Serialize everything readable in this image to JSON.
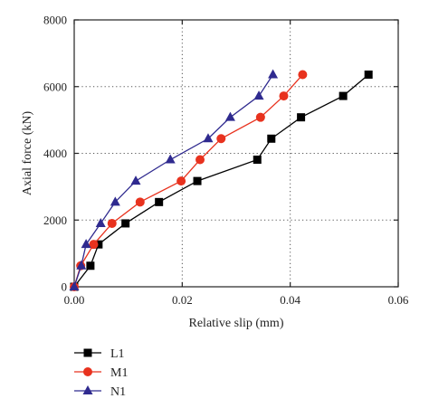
{
  "chart_data": {
    "type": "line",
    "title": "",
    "xlabel": "Relative slip (mm)",
    "ylabel": "Axial force (kN)",
    "xlim": [
      0,
      0.06
    ],
    "ylim": [
      0,
      8000
    ],
    "xticks": [
      0,
      0.02,
      0.04,
      0.06
    ],
    "xtick_labels": [
      "0.00",
      "0.02",
      "0.04",
      "0.06"
    ],
    "yticks": [
      0,
      2000,
      4000,
      6000,
      8000
    ],
    "ytick_labels": [
      "0",
      "2000",
      "4000",
      "6000",
      "8000"
    ],
    "grid": "dotted, at major ticks",
    "legend": "below plot, left",
    "series": [
      {
        "name": "L1",
        "color": "#000000",
        "marker": "square",
        "x": [
          0,
          0.003,
          0.0045,
          0.0095,
          0.0157,
          0.0228,
          0.0339,
          0.0365,
          0.042,
          0.0498,
          0.0545
        ],
        "y": [
          0,
          630,
          1270,
          1900,
          2540,
          3170,
          3810,
          4440,
          5080,
          5720,
          6360
        ]
      },
      {
        "name": "M1",
        "color": "#e8321e",
        "marker": "circle",
        "x": [
          0,
          0.0012,
          0.0036,
          0.007,
          0.0122,
          0.0198,
          0.0233,
          0.0272,
          0.0345,
          0.0388,
          0.0423
        ],
        "y": [
          0,
          630,
          1270,
          1900,
          2540,
          3170,
          3810,
          4440,
          5080,
          5720,
          6360
        ]
      },
      {
        "name": "N1",
        "color": "#2f2a8f",
        "marker": "triangle",
        "x": [
          0,
          0.0013,
          0.0022,
          0.0049,
          0.0076,
          0.0114,
          0.0178,
          0.0248,
          0.0289,
          0.0342,
          0.0368
        ],
        "y": [
          0,
          630,
          1270,
          1900,
          2540,
          3170,
          3810,
          4440,
          5080,
          5720,
          6360
        ]
      }
    ]
  }
}
